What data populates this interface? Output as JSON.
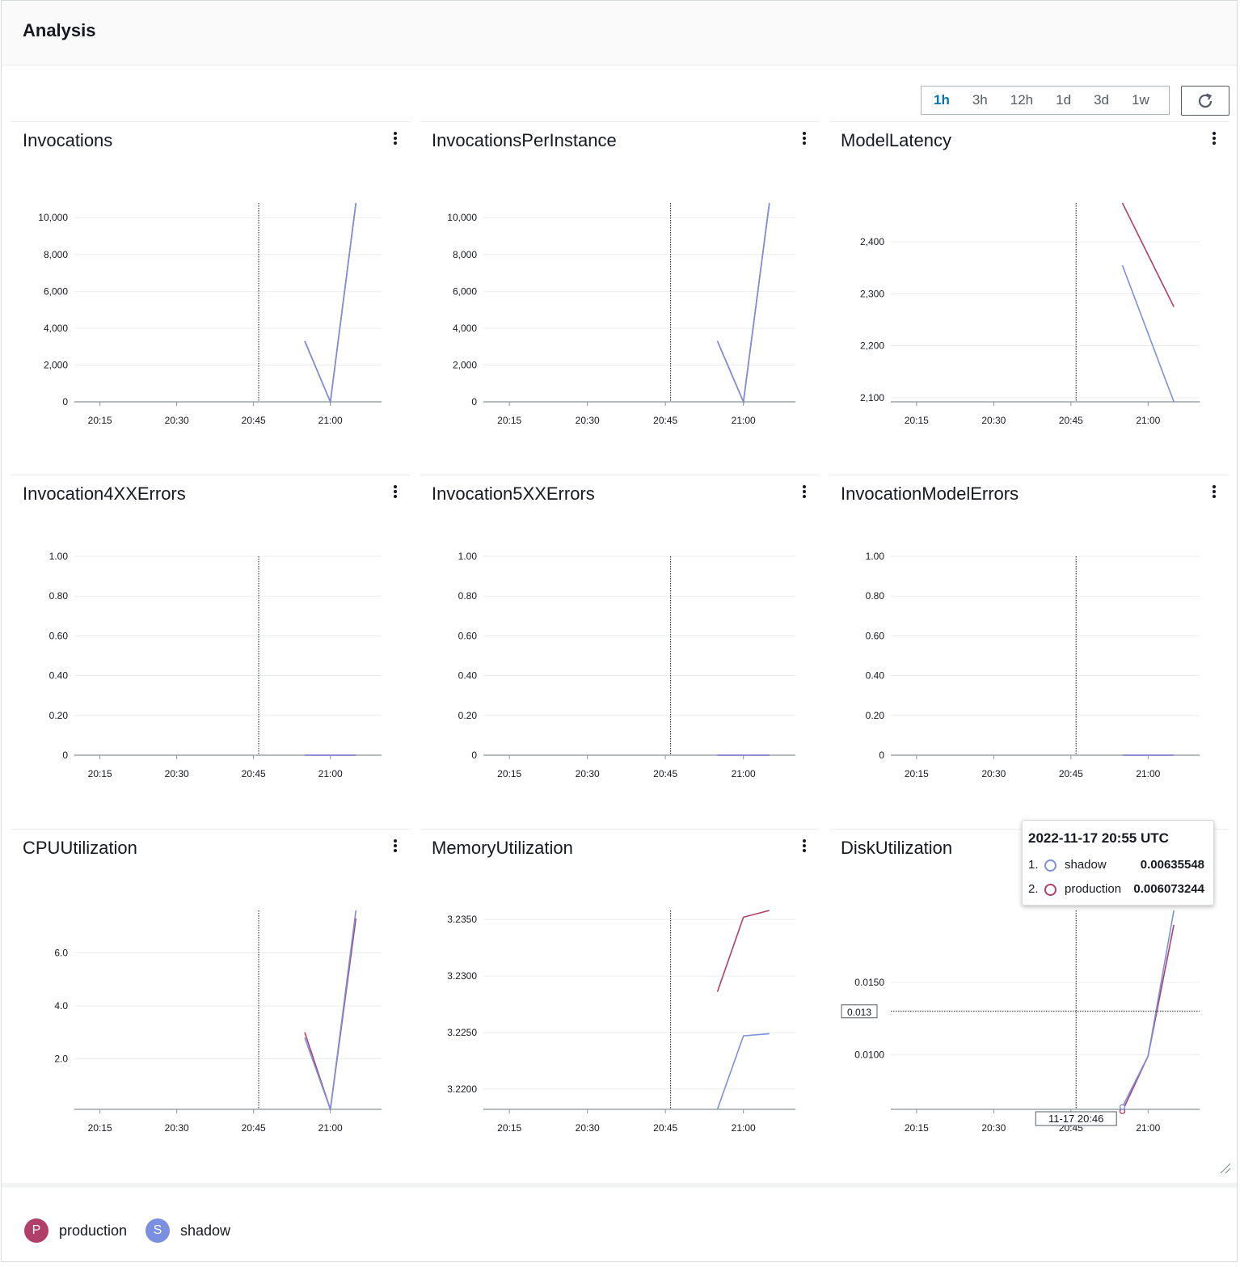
{
  "header": {
    "title": "Analysis"
  },
  "time_range": {
    "options": [
      "1h",
      "3h",
      "12h",
      "1d",
      "3d",
      "1w"
    ],
    "selected": "1h"
  },
  "refresh": {
    "icon": "refresh-icon"
  },
  "colors": {
    "production": "#b0406a",
    "shadow": "#7b8fe0"
  },
  "panels": [
    {
      "title": "Invocations",
      "chart_data": {
        "type": "line",
        "title": "Invocations",
        "x_ticks": [
          "20:15",
          "20:30",
          "20:45",
          "21:00"
        ],
        "x_range": [
          "20:10",
          "21:10"
        ],
        "y_ticks": [
          "0",
          "2,000",
          "4,000",
          "6,000",
          "8,000",
          "10,000"
        ],
        "ylim": [
          0,
          10800
        ],
        "series": [
          {
            "name": "production",
            "x": [
              "20:55",
              "21:00",
              "21:05"
            ],
            "values": [
              3300,
              0,
              10800
            ]
          },
          {
            "name": "shadow",
            "x": [
              "20:55",
              "21:00",
              "21:05"
            ],
            "values": [
              3300,
              0,
              10800
            ]
          }
        ]
      }
    },
    {
      "title": "InvocationsPerInstance",
      "chart_data": {
        "type": "line",
        "title": "InvocationsPerInstance",
        "x_ticks": [
          "20:15",
          "20:30",
          "20:45",
          "21:00"
        ],
        "x_range": [
          "20:10",
          "21:10"
        ],
        "y_ticks": [
          "0",
          "2,000",
          "4,000",
          "6,000",
          "8,000",
          "10,000"
        ],
        "ylim": [
          0,
          10800
        ],
        "series": [
          {
            "name": "production",
            "x": [
              "20:55",
              "21:00",
              "21:05"
            ],
            "values": [
              3300,
              0,
              10800
            ]
          },
          {
            "name": "shadow",
            "x": [
              "20:55",
              "21:00",
              "21:05"
            ],
            "values": [
              3300,
              0,
              10800
            ]
          }
        ]
      }
    },
    {
      "title": "ModelLatency",
      "chart_data": {
        "type": "line",
        "title": "ModelLatency",
        "x_ticks": [
          "20:15",
          "20:30",
          "20:45",
          "21:00"
        ],
        "x_range": [
          "20:10",
          "21:10"
        ],
        "y_ticks": [
          "2,100",
          "2,200",
          "2,300",
          "2,400"
        ],
        "ylim": [
          2092,
          2475
        ],
        "series": [
          {
            "name": "production",
            "x": [
              "20:55",
              "21:05"
            ],
            "values": [
              2475,
              2275
            ]
          },
          {
            "name": "shadow",
            "x": [
              "20:55",
              "21:05"
            ],
            "values": [
              2355,
              2092
            ]
          }
        ]
      }
    },
    {
      "title": "Invocation4XXErrors",
      "chart_data": {
        "type": "line",
        "title": "Invocation4XXErrors",
        "x_ticks": [
          "20:15",
          "20:30",
          "20:45",
          "21:00"
        ],
        "x_range": [
          "20:10",
          "21:10"
        ],
        "y_ticks": [
          "0",
          "0.20",
          "0.40",
          "0.60",
          "0.80",
          "1.00"
        ],
        "ylim": [
          0,
          1
        ],
        "series": [
          {
            "name": "production",
            "x": [
              "20:55",
              "21:00",
              "21:05"
            ],
            "values": [
              0,
              0,
              0
            ]
          },
          {
            "name": "shadow",
            "x": [
              "20:55",
              "21:00",
              "21:05"
            ],
            "values": [
              0,
              0,
              0
            ]
          }
        ]
      }
    },
    {
      "title": "Invocation5XXErrors",
      "chart_data": {
        "type": "line",
        "title": "Invocation5XXErrors",
        "x_ticks": [
          "20:15",
          "20:30",
          "20:45",
          "21:00"
        ],
        "x_range": [
          "20:10",
          "21:10"
        ],
        "y_ticks": [
          "0",
          "0.20",
          "0.40",
          "0.60",
          "0.80",
          "1.00"
        ],
        "ylim": [
          0,
          1
        ],
        "series": [
          {
            "name": "production",
            "x": [
              "20:55",
              "21:00",
              "21:05"
            ],
            "values": [
              0,
              0,
              0
            ]
          },
          {
            "name": "shadow",
            "x": [
              "20:55",
              "21:00",
              "21:05"
            ],
            "values": [
              0,
              0,
              0
            ]
          }
        ]
      }
    },
    {
      "title": "InvocationModelErrors",
      "chart_data": {
        "type": "line",
        "title": "InvocationModelErrors",
        "x_ticks": [
          "20:15",
          "20:30",
          "20:45",
          "21:00"
        ],
        "x_range": [
          "20:10",
          "21:10"
        ],
        "y_ticks": [
          "0",
          "0.20",
          "0.40",
          "0.60",
          "0.80",
          "1.00"
        ],
        "ylim": [
          0,
          1
        ],
        "series": [
          {
            "name": "production",
            "x": [
              "20:55",
              "21:00",
              "21:05"
            ],
            "values": [
              0,
              0,
              0
            ]
          },
          {
            "name": "shadow",
            "x": [
              "20:55",
              "21:00",
              "21:05"
            ],
            "values": [
              0,
              0,
              0
            ]
          }
        ]
      }
    },
    {
      "title": "CPUUtilization",
      "chart_data": {
        "type": "line",
        "title": "CPUUtilization",
        "x_ticks": [
          "20:15",
          "20:30",
          "20:45",
          "21:00"
        ],
        "x_range": [
          "20:10",
          "21:10"
        ],
        "y_ticks": [
          "2.0",
          "4.0",
          "6.0"
        ],
        "ylim": [
          0.1,
          7.6
        ],
        "series": [
          {
            "name": "production",
            "x": [
              "20:55",
              "21:00",
              "21:05"
            ],
            "values": [
              3.0,
              0.1,
              7.3
            ]
          },
          {
            "name": "shadow",
            "x": [
              "20:55",
              "21:00",
              "21:05"
            ],
            "values": [
              2.8,
              0.1,
              7.6
            ]
          }
        ]
      }
    },
    {
      "title": "MemoryUtilization",
      "chart_data": {
        "type": "line",
        "title": "MemoryUtilization",
        "x_ticks": [
          "20:15",
          "20:30",
          "20:45",
          "21:00"
        ],
        "x_range": [
          "20:10",
          "21:10"
        ],
        "y_ticks": [
          "3.2200",
          "3.2250",
          "3.2300",
          "3.2350"
        ],
        "ylim": [
          3.2182,
          3.2358
        ],
        "series": [
          {
            "name": "production",
            "x": [
              "20:55",
              "21:00",
              "21:05"
            ],
            "values": [
              3.2286,
              3.2352,
              3.2358
            ]
          },
          {
            "name": "shadow",
            "x": [
              "20:55",
              "21:00",
              "21:05"
            ],
            "values": [
              3.2182,
              3.2247,
              3.2249
            ]
          }
        ]
      }
    },
    {
      "title": "DiskUtilization",
      "chart_data": {
        "type": "line",
        "title": "DiskUtilization",
        "x_ticks": [
          "20:15",
          "20:30",
          "20:45",
          "21:00"
        ],
        "x_range": [
          "20:10",
          "21:10"
        ],
        "y_ticks": [
          "0.0100",
          "0.0150"
        ],
        "ylim": [
          0.0062,
          0.02
        ],
        "series": [
          {
            "name": "production",
            "x": [
              "20:55",
              "21:00",
              "21:05"
            ],
            "values": [
              0.00607,
              0.0099,
              0.019
            ]
          },
          {
            "name": "shadow",
            "x": [
              "20:55",
              "21:00",
              "21:05"
            ],
            "values": [
              0.00636,
              0.0099,
              0.02
            ]
          }
        ],
        "crosshair": {
          "x_label": "11-17 20:46",
          "y_label": "0.013"
        }
      }
    }
  ],
  "tooltip": {
    "title": "2022-11-17 20:55 UTC",
    "rows": [
      {
        "index": "1.",
        "name": "shadow",
        "value": "0.00635548"
      },
      {
        "index": "2.",
        "name": "production",
        "value": "0.006073244"
      }
    ]
  },
  "legend": [
    {
      "badge": "P",
      "label": "production"
    },
    {
      "badge": "S",
      "label": "shadow"
    }
  ]
}
